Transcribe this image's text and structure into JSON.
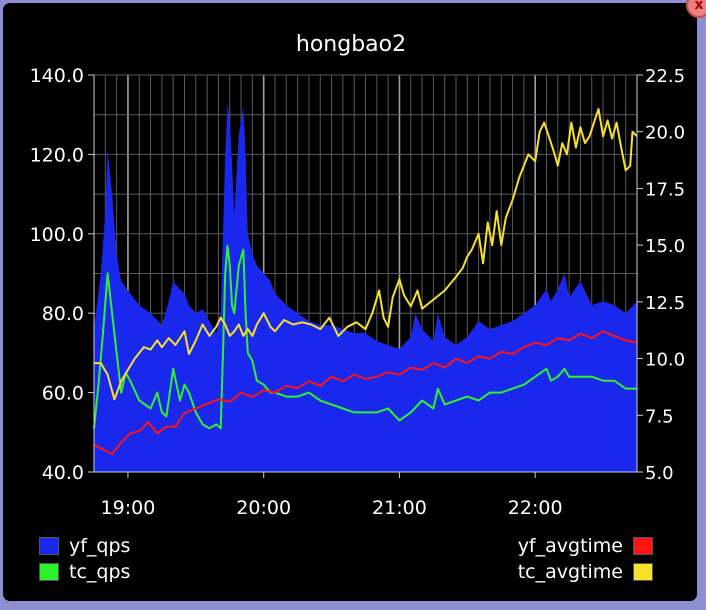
{
  "window": {
    "close_label": "x"
  },
  "colors": {
    "background": "#000000",
    "grid": "#5a5a5a",
    "text": "#ffffff",
    "frame": "#8e8fd2",
    "close_button": "#f08080"
  },
  "chart_data": {
    "type": "area",
    "title": "hongbao2",
    "xlabel": "",
    "x_tick_labels": [
      "19:00",
      "20:00",
      "21:00",
      "22:00"
    ],
    "x_tick_positions_min": [
      15,
      75,
      135,
      195
    ],
    "x_range_min": [
      0,
      240
    ],
    "x_unit": "minutes after 18:45",
    "grid": true,
    "y_left": {
      "ylim": [
        40,
        140
      ],
      "ticks": [
        "40.0",
        "60.0",
        "80.0",
        "100.0",
        "120.0",
        "140.0"
      ]
    },
    "y_right": {
      "ylim": [
        5,
        22.5
      ],
      "ticks": [
        "5.0",
        "7.5",
        "10.0",
        "12.5",
        "15.0",
        "17.5",
        "20.0",
        "22.5"
      ]
    },
    "series": [
      {
        "name": "yf_qps",
        "type": "area",
        "axis": "left",
        "color": "#1a28ee",
        "points": [
          [
            0,
            76
          ],
          [
            3,
            90
          ],
          [
            5,
            105
          ],
          [
            6,
            121
          ],
          [
            8,
            110
          ],
          [
            10,
            95
          ],
          [
            12,
            88
          ],
          [
            16,
            85
          ],
          [
            20,
            82
          ],
          [
            25,
            80
          ],
          [
            30,
            77
          ],
          [
            33,
            83
          ],
          [
            35,
            88
          ],
          [
            38,
            86
          ],
          [
            40,
            85
          ],
          [
            42,
            82
          ],
          [
            45,
            80
          ],
          [
            48,
            81
          ],
          [
            51,
            78
          ],
          [
            54,
            75
          ],
          [
            56,
            80
          ],
          [
            57,
            100
          ],
          [
            58,
            120
          ],
          [
            59,
            133
          ],
          [
            60,
            128
          ],
          [
            61,
            118
          ],
          [
            62,
            105
          ],
          [
            64,
            125
          ],
          [
            66,
            132
          ],
          [
            67,
            120
          ],
          [
            68,
            100
          ],
          [
            70,
            95
          ],
          [
            72,
            92
          ],
          [
            75,
            90
          ],
          [
            78,
            88
          ],
          [
            80,
            85
          ],
          [
            85,
            82
          ],
          [
            90,
            80
          ],
          [
            95,
            78
          ],
          [
            100,
            77
          ],
          [
            105,
            77
          ],
          [
            110,
            76
          ],
          [
            115,
            75
          ],
          [
            120,
            75
          ],
          [
            125,
            73
          ],
          [
            130,
            72
          ],
          [
            135,
            71
          ],
          [
            140,
            74
          ],
          [
            142,
            80
          ],
          [
            145,
            76
          ],
          [
            150,
            73
          ],
          [
            152,
            80
          ],
          [
            155,
            74
          ],
          [
            160,
            72
          ],
          [
            165,
            74
          ],
          [
            170,
            78
          ],
          [
            175,
            76
          ],
          [
            180,
            77
          ],
          [
            185,
            78
          ],
          [
            190,
            80
          ],
          [
            195,
            82
          ],
          [
            200,
            86
          ],
          [
            202,
            83
          ],
          [
            205,
            86
          ],
          [
            208,
            90
          ],
          [
            210,
            84
          ],
          [
            215,
            88
          ],
          [
            220,
            82
          ],
          [
            225,
            83
          ],
          [
            230,
            82
          ],
          [
            235,
            80
          ],
          [
            240,
            83
          ]
        ]
      },
      {
        "name": "tc_qps",
        "type": "line",
        "axis": "left",
        "color": "#2ef12e",
        "points": [
          [
            0,
            51
          ],
          [
            2,
            62
          ],
          [
            4,
            75
          ],
          [
            6,
            90
          ],
          [
            8,
            80
          ],
          [
            10,
            70
          ],
          [
            12,
            60
          ],
          [
            14,
            65
          ],
          [
            16,
            63
          ],
          [
            20,
            58
          ],
          [
            25,
            56
          ],
          [
            28,
            60
          ],
          [
            30,
            55
          ],
          [
            32,
            54
          ],
          [
            35,
            66
          ],
          [
            38,
            58
          ],
          [
            40,
            62
          ],
          [
            42,
            60
          ],
          [
            45,
            55
          ],
          [
            48,
            52
          ],
          [
            51,
            51
          ],
          [
            54,
            52
          ],
          [
            56,
            51
          ],
          [
            57,
            70
          ],
          [
            58,
            90
          ],
          [
            59,
            97
          ],
          [
            60,
            92
          ],
          [
            61,
            82
          ],
          [
            62,
            80
          ],
          [
            64,
            92
          ],
          [
            66,
            96
          ],
          [
            67,
            80
          ],
          [
            68,
            70
          ],
          [
            70,
            68
          ],
          [
            72,
            63
          ],
          [
            75,
            62
          ],
          [
            78,
            60
          ],
          [
            80,
            60
          ],
          [
            85,
            59
          ],
          [
            90,
            59
          ],
          [
            95,
            60
          ],
          [
            100,
            58
          ],
          [
            105,
            57
          ],
          [
            110,
            56
          ],
          [
            115,
            55
          ],
          [
            120,
            55
          ],
          [
            125,
            55
          ],
          [
            130,
            56
          ],
          [
            135,
            53
          ],
          [
            140,
            55
          ],
          [
            145,
            58
          ],
          [
            150,
            56
          ],
          [
            152,
            61
          ],
          [
            155,
            57
          ],
          [
            160,
            58
          ],
          [
            165,
            59
          ],
          [
            170,
            58
          ],
          [
            175,
            60
          ],
          [
            180,
            60
          ],
          [
            185,
            61
          ],
          [
            190,
            62
          ],
          [
            195,
            64
          ],
          [
            200,
            66
          ],
          [
            202,
            63
          ],
          [
            205,
            64
          ],
          [
            208,
            66
          ],
          [
            210,
            64
          ],
          [
            215,
            64
          ],
          [
            220,
            64
          ],
          [
            225,
            63
          ],
          [
            230,
            63
          ],
          [
            235,
            61
          ],
          [
            240,
            61
          ]
        ]
      },
      {
        "name": "yf_avgtime",
        "type": "line",
        "axis": "right",
        "color": "#ff1414",
        "points": [
          [
            0,
            6.2
          ],
          [
            4,
            6.0
          ],
          [
            8,
            5.8
          ],
          [
            12,
            6.3
          ],
          [
            16,
            6.7
          ],
          [
            20,
            6.8
          ],
          [
            24,
            7.2
          ],
          [
            28,
            6.7
          ],
          [
            32,
            7.0
          ],
          [
            36,
            7.0
          ],
          [
            40,
            7.6
          ],
          [
            45,
            7.8
          ],
          [
            50,
            8.0
          ],
          [
            55,
            8.2
          ],
          [
            60,
            8.1
          ],
          [
            65,
            8.5
          ],
          [
            70,
            8.3
          ],
          [
            75,
            8.6
          ],
          [
            80,
            8.5
          ],
          [
            85,
            8.8
          ],
          [
            90,
            8.7
          ],
          [
            95,
            9.0
          ],
          [
            100,
            8.8
          ],
          [
            105,
            9.2
          ],
          [
            110,
            9.0
          ],
          [
            115,
            9.3
          ],
          [
            120,
            9.1
          ],
          [
            125,
            9.2
          ],
          [
            130,
            9.4
          ],
          [
            135,
            9.3
          ],
          [
            140,
            9.6
          ],
          [
            145,
            9.5
          ],
          [
            150,
            9.8
          ],
          [
            155,
            9.6
          ],
          [
            160,
            10.0
          ],
          [
            165,
            9.8
          ],
          [
            170,
            10.1
          ],
          [
            175,
            10.0
          ],
          [
            180,
            10.3
          ],
          [
            185,
            10.2
          ],
          [
            190,
            10.5
          ],
          [
            195,
            10.7
          ],
          [
            200,
            10.6
          ],
          [
            205,
            10.9
          ],
          [
            210,
            10.8
          ],
          [
            215,
            11.1
          ],
          [
            220,
            10.9
          ],
          [
            225,
            11.2
          ],
          [
            230,
            11.0
          ],
          [
            235,
            10.8
          ],
          [
            240,
            10.7
          ]
        ]
      },
      {
        "name": "tc_avgtime",
        "type": "line",
        "axis": "right",
        "color": "#f5e02c",
        "points": [
          [
            0,
            9.8
          ],
          [
            3,
            9.8
          ],
          [
            6,
            9.3
          ],
          [
            9,
            8.2
          ],
          [
            12,
            9.0
          ],
          [
            15,
            9.5
          ],
          [
            18,
            10.0
          ],
          [
            22,
            10.5
          ],
          [
            25,
            10.4
          ],
          [
            28,
            10.8
          ],
          [
            30,
            10.5
          ],
          [
            33,
            10.9
          ],
          [
            36,
            10.6
          ],
          [
            40,
            11.2
          ],
          [
            42,
            10.2
          ],
          [
            45,
            10.8
          ],
          [
            48,
            11.5
          ],
          [
            51,
            11.0
          ],
          [
            54,
            11.4
          ],
          [
            56,
            11.8
          ],
          [
            58,
            11.5
          ],
          [
            60,
            11.0
          ],
          [
            62,
            11.2
          ],
          [
            64,
            11.5
          ],
          [
            66,
            11.0
          ],
          [
            68,
            11.3
          ],
          [
            70,
            11.0
          ],
          [
            72,
            11.5
          ],
          [
            75,
            12.0
          ],
          [
            78,
            11.4
          ],
          [
            80,
            11.2
          ],
          [
            84,
            11.7
          ],
          [
            88,
            11.5
          ],
          [
            92,
            11.6
          ],
          [
            96,
            11.5
          ],
          [
            100,
            11.3
          ],
          [
            104,
            11.8
          ],
          [
            108,
            11.0
          ],
          [
            112,
            11.4
          ],
          [
            116,
            11.6
          ],
          [
            120,
            11.3
          ],
          [
            123,
            12.0
          ],
          [
            126,
            13.0
          ],
          [
            128,
            11.8
          ],
          [
            130,
            11.4
          ],
          [
            132,
            12.7
          ],
          [
            135,
            13.5
          ],
          [
            137,
            12.8
          ],
          [
            140,
            12.3
          ],
          [
            143,
            13.0
          ],
          [
            145,
            12.2
          ],
          [
            150,
            12.6
          ],
          [
            155,
            13.0
          ],
          [
            160,
            13.6
          ],
          [
            163,
            14.0
          ],
          [
            165,
            14.5
          ],
          [
            167,
            14.8
          ],
          [
            170,
            15.5
          ],
          [
            172,
            14.2
          ],
          [
            174,
            16.0
          ],
          [
            176,
            15.0
          ],
          [
            178,
            16.5
          ],
          [
            180,
            15.0
          ],
          [
            182,
            16.2
          ],
          [
            185,
            17.0
          ],
          [
            188,
            18.0
          ],
          [
            190,
            18.5
          ],
          [
            192,
            19.0
          ],
          [
            195,
            18.7
          ],
          [
            197,
            20.0
          ],
          [
            199,
            20.4
          ],
          [
            201,
            19.8
          ],
          [
            203,
            19.2
          ],
          [
            205,
            18.5
          ],
          [
            207,
            19.5
          ],
          [
            209,
            19.0
          ],
          [
            211,
            20.4
          ],
          [
            213,
            19.3
          ],
          [
            215,
            20.2
          ],
          [
            217,
            19.5
          ],
          [
            219,
            19.8
          ],
          [
            221,
            20.4
          ],
          [
            223,
            21.0
          ],
          [
            225,
            19.8
          ],
          [
            227,
            20.5
          ],
          [
            229,
            19.7
          ],
          [
            231,
            20.4
          ],
          [
            233,
            19.3
          ],
          [
            235,
            18.3
          ],
          [
            237,
            18.5
          ],
          [
            238,
            20.0
          ],
          [
            240,
            19.8
          ]
        ]
      }
    ]
  },
  "legend": {
    "left": [
      {
        "label": "yf_qps",
        "color": "#1a28ee"
      },
      {
        "label": "tc_qps",
        "color": "#2ef12e"
      }
    ],
    "right": [
      {
        "label": "yf_avgtime",
        "color": "#ff1414"
      },
      {
        "label": "tc_avgtime",
        "color": "#f5e02c"
      }
    ],
    "placement": "bottom"
  }
}
